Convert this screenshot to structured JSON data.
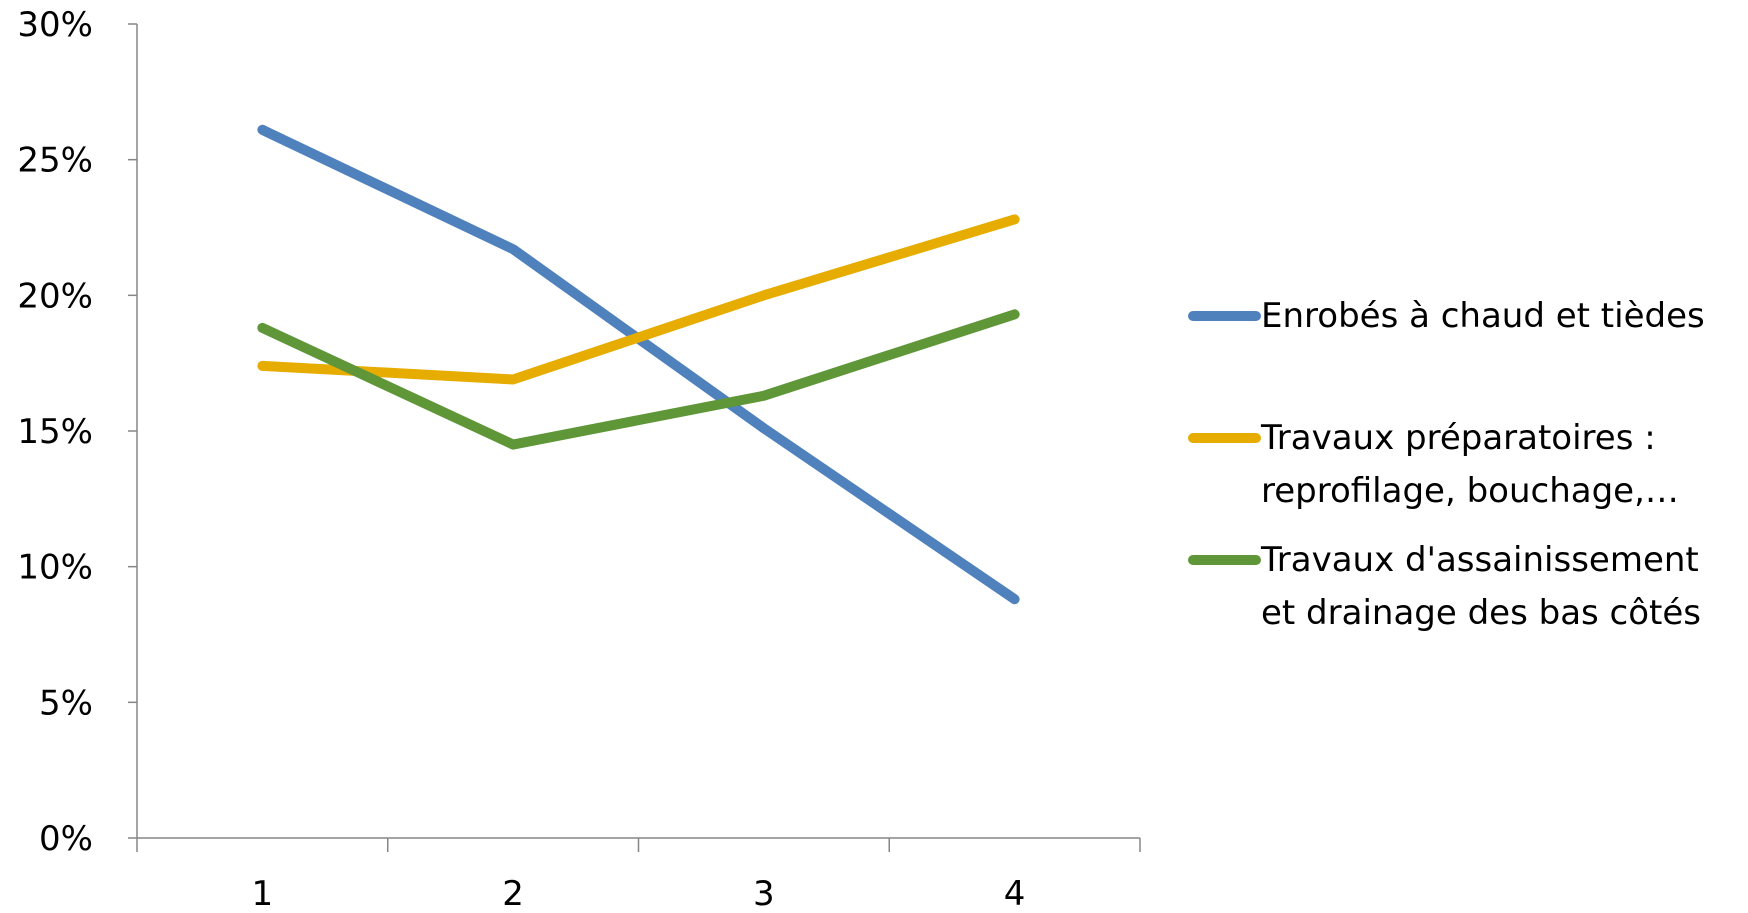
{
  "chart_data": {
    "type": "line",
    "title": "",
    "xlabel": "",
    "ylabel": "",
    "x": [
      1,
      2,
      3,
      4
    ],
    "categories": [
      "1",
      "2",
      "3",
      "4"
    ],
    "ylim": [
      0,
      0.3
    ],
    "yticks": [
      0,
      0.05,
      0.1,
      0.15,
      0.2,
      0.25,
      0.3
    ],
    "ytick_labels": [
      "0%",
      "5%",
      "10%",
      "15%",
      "20%",
      "25%",
      "30%"
    ],
    "grid": false,
    "legend_position": "right",
    "series": [
      {
        "name": "Enrobés à chaud et tièdes",
        "name_lines": [
          "Enrobés à chaud et tièdes"
        ],
        "color": "#4F81BD",
        "values": [
          0.261,
          0.217,
          0.151,
          0.088
        ]
      },
      {
        "name": "Travaux préparatoires : reprofilage, bouchage,…",
        "name_lines": [
          "Travaux préparatoires :",
          "reprofilage, bouchage,…"
        ],
        "color": "#E6AC00",
        "values": [
          0.174,
          0.169,
          0.2,
          0.228
        ]
      },
      {
        "name": "Travaux d'assainissement et drainage des bas côtés",
        "name_lines": [
          "Travaux d'assainissement",
          "et drainage des bas côtés"
        ],
        "color": "#5E9638",
        "values": [
          0.188,
          0.145,
          0.163,
          0.193
        ]
      }
    ]
  }
}
